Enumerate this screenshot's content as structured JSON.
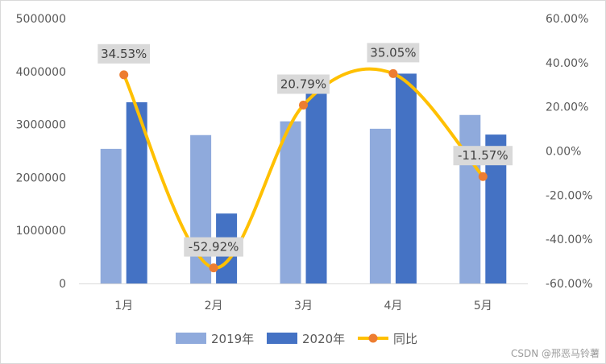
{
  "chart_data": {
    "type": "bar",
    "categories": [
      "1月",
      "2月",
      "3月",
      "4月",
      "5月"
    ],
    "series": [
      {
        "name": "2019年",
        "type": "bar",
        "axis": "left",
        "color": "#8FAADC",
        "values": [
          2540000,
          2800000,
          3060000,
          2920000,
          3180000
        ]
      },
      {
        "name": "2020年",
        "type": "bar",
        "axis": "left",
        "color": "#4472C4",
        "values": [
          3420000,
          1320000,
          3700000,
          3960000,
          2810000
        ]
      },
      {
        "name": "同比",
        "type": "line",
        "axis": "right",
        "color": "#FFC000",
        "marker_color": "#ED7D31",
        "values": [
          34.53,
          -52.92,
          20.79,
          35.05,
          -11.57
        ],
        "labels": [
          "34.53%",
          "-52.92%",
          "20.79%",
          "35.05%",
          "-11.57%"
        ]
      }
    ],
    "left_axis": {
      "min": 0,
      "max": 5000000,
      "ticks": [
        "0",
        "1000000",
        "2000000",
        "3000000",
        "4000000",
        "5000000"
      ]
    },
    "right_axis": {
      "min": -60,
      "max": 60,
      "ticks": [
        "-60.00%",
        "-40.00%",
        "-20.00%",
        "0.00%",
        "20.00%",
        "40.00%",
        "60.00%"
      ]
    },
    "grid": false,
    "legend": "bottom"
  },
  "watermark": "CSDN @邢恶马铃薯"
}
